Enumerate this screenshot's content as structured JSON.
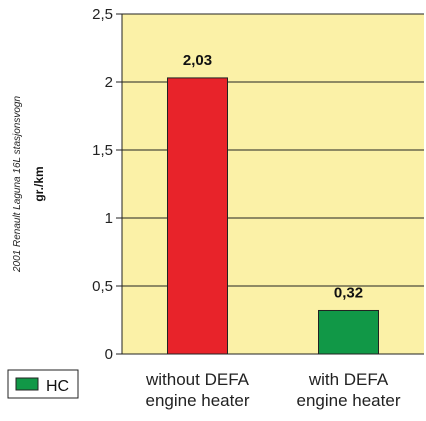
{
  "chart_data": {
    "type": "bar",
    "categories": [
      [
        "without DEFA",
        "engine heater"
      ],
      [
        "with DEFA",
        "engine heater"
      ]
    ],
    "values": [
      2.03,
      0.32
    ],
    "value_labels": [
      "2,03",
      "0,32"
    ],
    "bar_colors": [
      "#e8232a",
      "#119847"
    ],
    "ylabel": "gr./km",
    "side_note": "2001 Renault Laguna 16L stasjonsvogn",
    "ylim": [
      0,
      2.5
    ],
    "yticks": [
      0,
      0.5,
      1,
      1.5,
      2,
      2.5
    ],
    "ytick_labels": [
      "0",
      "0,5",
      "1",
      "1,5",
      "2",
      "2,5"
    ],
    "grid": true,
    "plot_background": "#fbf1a7",
    "legend": {
      "placement": "bottom-left",
      "entries": [
        {
          "name": "HC",
          "color": "#119847"
        }
      ]
    }
  }
}
